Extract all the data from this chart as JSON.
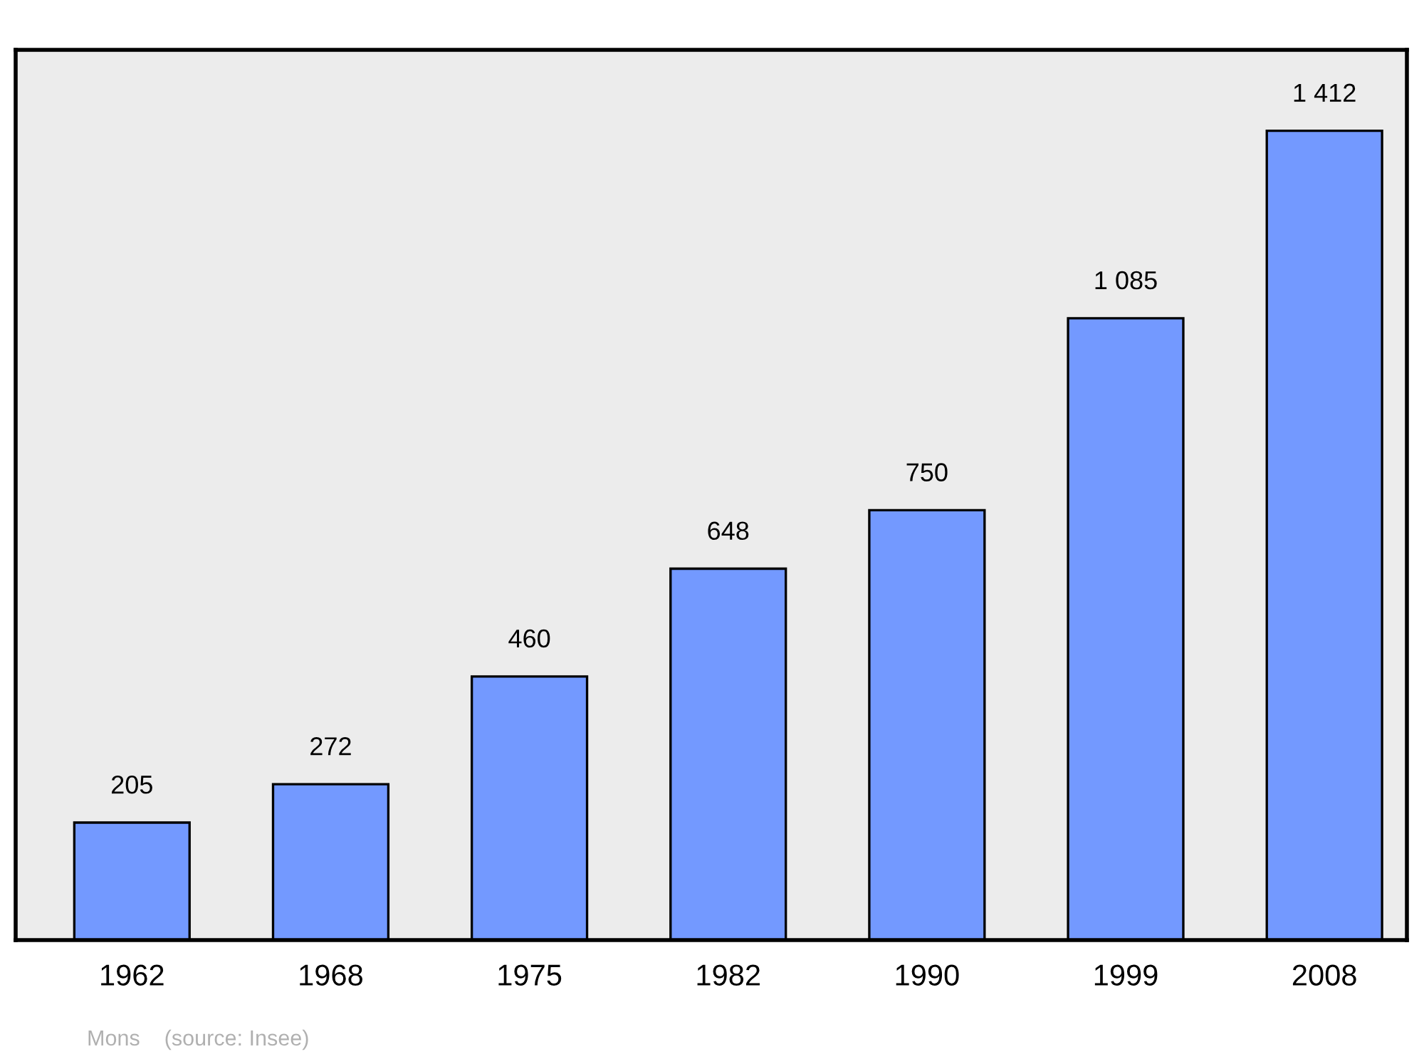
{
  "chart_data": {
    "type": "bar",
    "categories": [
      "1962",
      "1968",
      "1975",
      "1982",
      "1990",
      "1999",
      "2008"
    ],
    "values": [
      205,
      272,
      460,
      648,
      750,
      1085,
      1412
    ],
    "value_labels": [
      "205",
      "272",
      "460",
      "648",
      "750",
      "1 085",
      "1 412"
    ],
    "color": "#7399ff",
    "grid": false,
    "tick_labels": "x",
    "annotations": [
      "Mons    (source: Insee)"
    ]
  }
}
